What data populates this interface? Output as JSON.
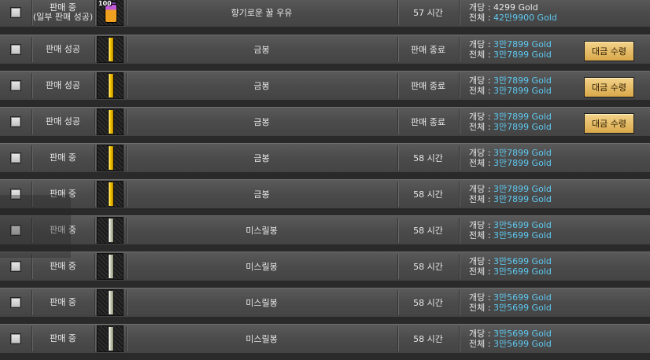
{
  "labels": {
    "per_unit": "개당 :",
    "total": "전체 :"
  },
  "rows": [
    {
      "status": "판매 중",
      "status2": "(일부 판매 성공)",
      "icon": "potion",
      "qty": "100",
      "name": "향기로운 꿀 우유",
      "time": "57 시간",
      "per": "4299 Gold",
      "total": "42만9900 Gold",
      "per_blue": false,
      "button": ""
    },
    {
      "status": "판매 성공",
      "status2": "",
      "icon": "gold-rod",
      "qty": "",
      "name": "금봉",
      "time": "판매 종료",
      "per": "3만7899 Gold",
      "total": "3만7899 Gold",
      "per_blue": true,
      "button": "대금 수령"
    },
    {
      "status": "판매 성공",
      "status2": "",
      "icon": "gold-rod",
      "qty": "",
      "name": "금봉",
      "time": "판매 종료",
      "per": "3만7899 Gold",
      "total": "3만7899 Gold",
      "per_blue": true,
      "button": "대금 수령"
    },
    {
      "status": "판매 성공",
      "status2": "",
      "icon": "gold-rod",
      "qty": "",
      "name": "금봉",
      "time": "판매 종료",
      "per": "3만7899 Gold",
      "total": "3만7899 Gold",
      "per_blue": true,
      "button": "대금 수령"
    },
    {
      "status": "판매 중",
      "status2": "",
      "icon": "gold-rod",
      "qty": "",
      "name": "금봉",
      "time": "58 시간",
      "per": "3만7899 Gold",
      "total": "3만7899 Gold",
      "per_blue": true,
      "button": ""
    },
    {
      "status": "판매 중",
      "status2": "",
      "icon": "gold-rod",
      "qty": "",
      "name": "금봉",
      "time": "58 시간",
      "per": "3만7899 Gold",
      "total": "3만7899 Gold",
      "per_blue": true,
      "button": ""
    },
    {
      "status": "판매 중",
      "status2": "",
      "icon": "mithril-rod",
      "qty": "",
      "name": "미스릴봉",
      "time": "58 시간",
      "per": "3만5699 Gold",
      "total": "3만5699 Gold",
      "per_blue": true,
      "button": ""
    },
    {
      "status": "판매 중",
      "status2": "",
      "icon": "mithril-rod",
      "qty": "",
      "name": "미스릴봉",
      "time": "58 시간",
      "per": "3만5699 Gold",
      "total": "3만5699 Gold",
      "per_blue": true,
      "button": ""
    },
    {
      "status": "판매 중",
      "status2": "",
      "icon": "mithril-rod",
      "qty": "",
      "name": "미스릴봉",
      "time": "58 시간",
      "per": "3만5699 Gold",
      "total": "3만5699 Gold",
      "per_blue": true,
      "button": ""
    },
    {
      "status": "판매 중",
      "status2": "",
      "icon": "mithril-rod",
      "qty": "",
      "name": "미스릴봉",
      "time": "58 시간",
      "per": "3만5699 Gold",
      "total": "3만5699 Gold",
      "per_blue": true,
      "button": ""
    }
  ]
}
